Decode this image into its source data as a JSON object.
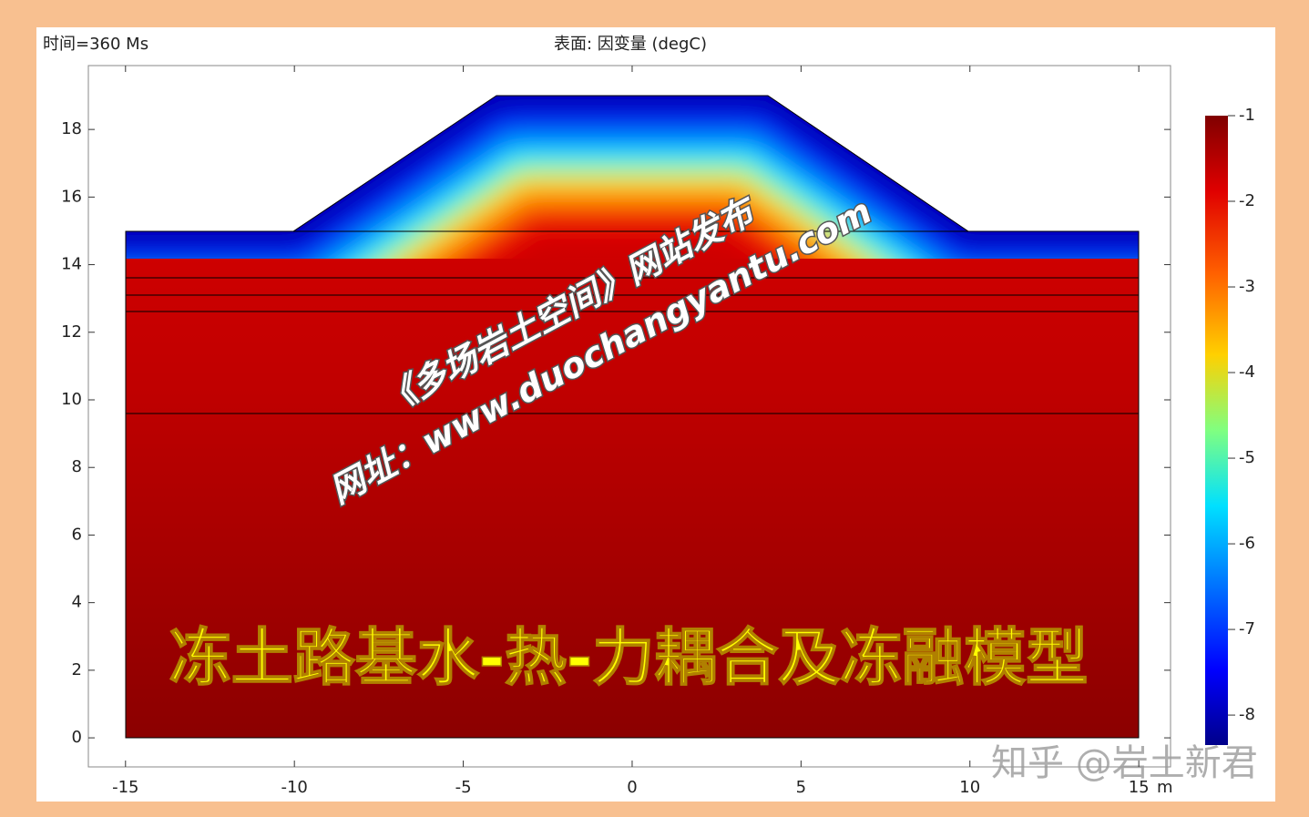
{
  "chart_data": {
    "type": "surface",
    "title": "表面: 因变量 (degC)",
    "time_label": "时间=360 Ms",
    "x_unit": "m",
    "xlim": [
      -16.1,
      15.94
    ],
    "ylim": [
      -0.86,
      19.89
    ],
    "xticks": [
      -15,
      -10,
      -5,
      0,
      5,
      10,
      15
    ],
    "yticks": [
      0,
      2,
      4,
      6,
      8,
      10,
      12,
      14,
      16,
      18
    ],
    "colorbar": {
      "lim": [
        -8.35,
        -1
      ],
      "ticks": [
        -1,
        -2,
        -3,
        -4,
        -5,
        -6,
        -7,
        -8
      ]
    }
  },
  "watermark": {
    "line1": "《多场岩土空间》网站发布",
    "line2": "网址：www.duochangyantu.com"
  },
  "banner": "冻土路基水-热-力耦合及冻融模型",
  "footer": "知乎 @岩土新君"
}
